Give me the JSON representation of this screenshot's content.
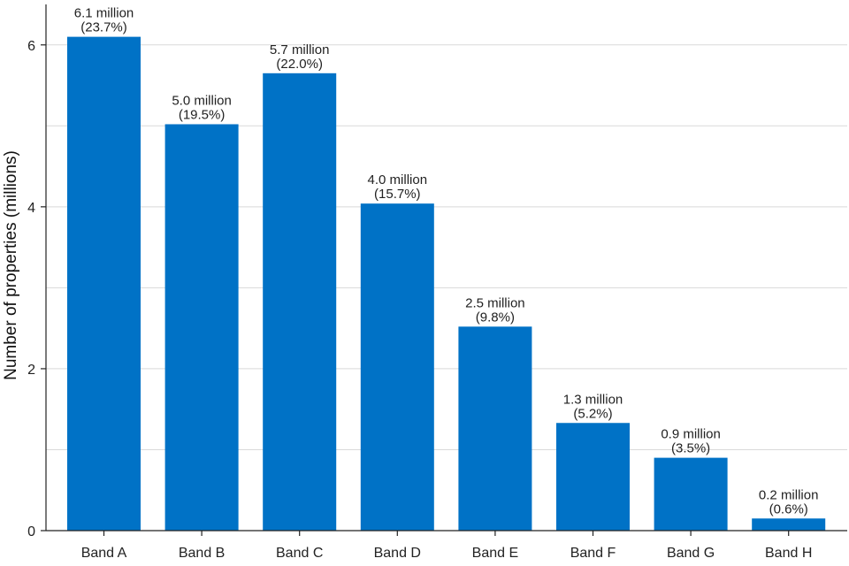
{
  "chart_data": {
    "type": "bar",
    "title": "",
    "xlabel": "",
    "ylabel": "Number of properties (millions)",
    "ylim": [
      0,
      6.5
    ],
    "yticks": [
      0,
      2,
      4,
      6
    ],
    "minor_gridlines": [
      1,
      3,
      5
    ],
    "grid": true,
    "categories": [
      "Band A",
      "Band B",
      "Band C",
      "Band D",
      "Band E",
      "Band F",
      "Band G",
      "Band H"
    ],
    "values": [
      6.1,
      5.02,
      5.65,
      4.04,
      2.52,
      1.33,
      0.9,
      0.15
    ],
    "value_labels": [
      "6.1 million",
      "5.0 million",
      "5.7 million",
      "4.0 million",
      "2.5 million",
      "1.3 million",
      "0.9 million",
      "0.2 million"
    ],
    "percent_labels": [
      "(23.7%)",
      "(19.5%)",
      "(22.0%)",
      "(15.7%)",
      "(9.8%)",
      "(5.2%)",
      "(3.5%)",
      "(0.6%)"
    ],
    "bar_color": "#0072c6"
  }
}
